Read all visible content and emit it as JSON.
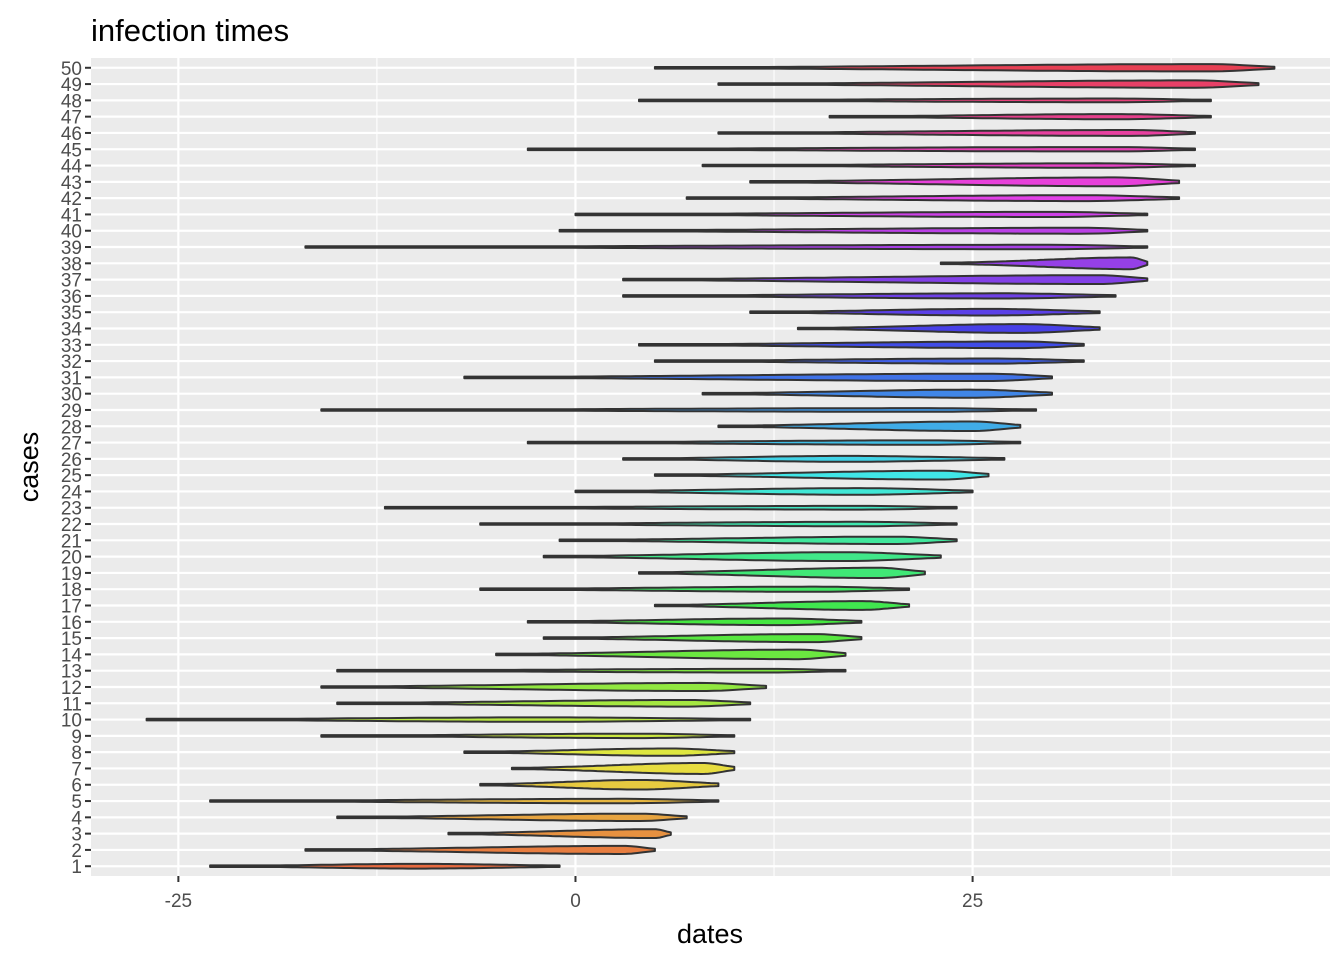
{
  "chart_data": {
    "type": "violin",
    "orientation": "horizontal",
    "title": "infection times",
    "xlabel": "dates",
    "ylabel": "cases",
    "xlim": [
      -30.5,
      47.5
    ],
    "x_ticks": [
      -25,
      0,
      25
    ],
    "x_tick_labels": [
      "-25",
      "0",
      "25"
    ],
    "grid": true,
    "legend": "none",
    "panel_background": "#ebebeb",
    "grid_color": "#ffffff",
    "outline_color": "#333333",
    "categories": [
      "1",
      "2",
      "3",
      "4",
      "5",
      "6",
      "7",
      "8",
      "9",
      "10",
      "11",
      "12",
      "13",
      "14",
      "15",
      "16",
      "17",
      "18",
      "19",
      "20",
      "21",
      "22",
      "23",
      "24",
      "25",
      "26",
      "27",
      "28",
      "29",
      "30",
      "31",
      "32",
      "33",
      "34",
      "35",
      "36",
      "37",
      "38",
      "39",
      "40",
      "41",
      "42",
      "43",
      "44",
      "45",
      "46",
      "47",
      "48",
      "49",
      "50"
    ],
    "series": [
      {
        "case": "1",
        "min": -23,
        "max": -1,
        "mode": -10,
        "peak": 0.32
      },
      {
        "case": "2",
        "min": -17,
        "max": 5,
        "mode": 3,
        "peak": 0.55
      },
      {
        "case": "3",
        "min": -8,
        "max": 6,
        "mode": 5,
        "peak": 0.6
      },
      {
        "case": "4",
        "min": -15,
        "max": 7,
        "mode": 4,
        "peak": 0.5
      },
      {
        "case": "5",
        "min": -23,
        "max": 9,
        "mode": 3,
        "peak": 0.3
      },
      {
        "case": "6",
        "min": -6,
        "max": 9,
        "mode": 4,
        "peak": 0.65
      },
      {
        "case": "7",
        "min": -4,
        "max": 10,
        "mode": 8,
        "peak": 0.75
      },
      {
        "case": "8",
        "min": -7,
        "max": 10,
        "mode": 6,
        "peak": 0.5
      },
      {
        "case": "9",
        "min": -16,
        "max": 10,
        "mode": 4,
        "peak": 0.3
      },
      {
        "case": "10",
        "min": -27,
        "max": 11,
        "mode": -2,
        "peak": 0.3
      },
      {
        "case": "11",
        "min": -15,
        "max": 11,
        "mode": 7,
        "peak": 0.45
      },
      {
        "case": "12",
        "min": -16,
        "max": 12,
        "mode": 8,
        "peak": 0.55
      },
      {
        "case": "13",
        "min": -15,
        "max": 17,
        "mode": 12,
        "peak": 0.25
      },
      {
        "case": "14",
        "min": -5,
        "max": 17,
        "mode": 14,
        "peak": 0.65
      },
      {
        "case": "15",
        "min": -2,
        "max": 18,
        "mode": 15,
        "peak": 0.55
      },
      {
        "case": "16",
        "min": -3,
        "max": 18,
        "mode": 13,
        "peak": 0.45
      },
      {
        "case": "17",
        "min": 5,
        "max": 21,
        "mode": 18,
        "peak": 0.6
      },
      {
        "case": "18",
        "min": -6,
        "max": 21,
        "mode": 15,
        "peak": 0.35
      },
      {
        "case": "19",
        "min": 4,
        "max": 22,
        "mode": 19,
        "peak": 0.7
      },
      {
        "case": "20",
        "min": -2,
        "max": 23,
        "mode": 17,
        "peak": 0.6
      },
      {
        "case": "21",
        "min": -1,
        "max": 24,
        "mode": 20,
        "peak": 0.5
      },
      {
        "case": "22",
        "min": -6,
        "max": 24,
        "mode": 18,
        "peak": 0.3
      },
      {
        "case": "23",
        "min": -12,
        "max": 24,
        "mode": 18,
        "peak": 0.25
      },
      {
        "case": "24",
        "min": 0,
        "max": 25,
        "mode": 18,
        "peak": 0.45
      },
      {
        "case": "25",
        "min": 5,
        "max": 26,
        "mode": 23,
        "peak": 0.6
      },
      {
        "case": "26",
        "min": 3,
        "max": 27,
        "mode": 17,
        "peak": 0.4
      },
      {
        "case": "27",
        "min": -3,
        "max": 28,
        "mode": 22,
        "peak": 0.3
      },
      {
        "case": "28",
        "min": 9,
        "max": 28,
        "mode": 25,
        "peak": 0.65
      },
      {
        "case": "29",
        "min": -16,
        "max": 29,
        "mode": 22,
        "peak": 0.25
      },
      {
        "case": "30",
        "min": 8,
        "max": 30,
        "mode": 25,
        "peak": 0.55
      },
      {
        "case": "31",
        "min": -7,
        "max": 30,
        "mode": 26,
        "peak": 0.5
      },
      {
        "case": "32",
        "min": 5,
        "max": 32,
        "mode": 26,
        "peak": 0.35
      },
      {
        "case": "33",
        "min": 4,
        "max": 32,
        "mode": 28,
        "peak": 0.45
      },
      {
        "case": "34",
        "min": 14,
        "max": 33,
        "mode": 28,
        "peak": 0.6
      },
      {
        "case": "35",
        "min": 11,
        "max": 33,
        "mode": 26,
        "peak": 0.45
      },
      {
        "case": "36",
        "min": 3,
        "max": 34,
        "mode": 27,
        "peak": 0.35
      },
      {
        "case": "37",
        "min": 3,
        "max": 36,
        "mode": 33,
        "peak": 0.6
      },
      {
        "case": "38",
        "min": 23,
        "max": 36,
        "mode": 35,
        "peak": 0.8
      },
      {
        "case": "39",
        "min": -17,
        "max": 36,
        "mode": 30,
        "peak": 0.3
      },
      {
        "case": "40",
        "min": -1,
        "max": 36,
        "mode": 32,
        "peak": 0.4
      },
      {
        "case": "41",
        "min": 0,
        "max": 36,
        "mode": 30,
        "peak": 0.35
      },
      {
        "case": "42",
        "min": 7,
        "max": 38,
        "mode": 32,
        "peak": 0.4
      },
      {
        "case": "43",
        "min": 11,
        "max": 38,
        "mode": 34,
        "peak": 0.6
      },
      {
        "case": "44",
        "min": 8,
        "max": 39,
        "mode": 33,
        "peak": 0.3
      },
      {
        "case": "45",
        "min": -3,
        "max": 39,
        "mode": 34,
        "peak": 0.3
      },
      {
        "case": "46",
        "min": 9,
        "max": 39,
        "mode": 35,
        "peak": 0.4
      },
      {
        "case": "47",
        "min": 16,
        "max": 40,
        "mode": 34,
        "peak": 0.35
      },
      {
        "case": "48",
        "min": 4,
        "max": 40,
        "mode": 34,
        "peak": 0.25
      },
      {
        "case": "49",
        "min": 9,
        "max": 43,
        "mode": 39,
        "peak": 0.5
      },
      {
        "case": "50",
        "min": 5,
        "max": 44,
        "mode": 40,
        "peak": 0.5
      }
    ]
  }
}
